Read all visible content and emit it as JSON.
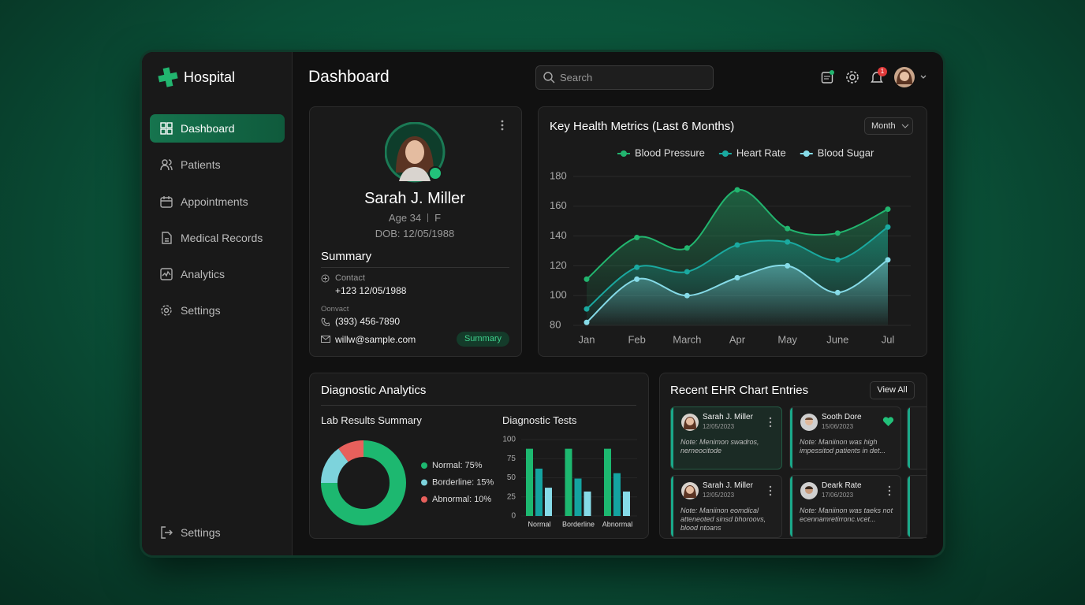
{
  "sidebar": {
    "brand": "Hospital",
    "nav": [
      "Dashboard",
      "Patients",
      "Appointments",
      "Medical Records",
      "Analytics",
      "Settings"
    ],
    "footer": "Settings"
  },
  "header": {
    "title": "Dashboard",
    "search_placeholder": "Search",
    "notification_count": "1"
  },
  "profile": {
    "name": "Sarah J. Miller",
    "age": "Age 34",
    "sex": "F",
    "dob": "DOB: 12/05/1988",
    "section_title": "Summary",
    "contact_label": "Contact",
    "contact_value": "+123 12/05/1988",
    "second_label": "Oonvact",
    "phone": "(393) 456-7890",
    "email": "willw@sample.com",
    "badge": "Summary"
  },
  "metrics_panel": {
    "period_selector": "Month"
  },
  "diagnostic_panel": {
    "title": "Diagnostic Analytics"
  },
  "ehr": {
    "title": "Recent EHR Chart Entries",
    "button": "View All",
    "entries": [
      {
        "name": "Sarah J. Miller",
        "date": "12/05/2023",
        "note": "Note: Menimon swadros, nerneocitode"
      },
      {
        "name": "Sooth Dore",
        "date": "15/06/2023",
        "note": "Note: Maniinon was high impessitod patients in det..."
      },
      {
        "name": "Sarah J. Miller",
        "date": "12/05/2023",
        "note": "Note: Maniinon eomdical atteneoted sinsd bhoroovs, blood ntoans"
      },
      {
        "name": "Deark Rate",
        "date": "17/06/2023",
        "note": "Note: Maniinon was taeks not ecennamretirronc.vcet..."
      }
    ]
  },
  "chart_data": [
    {
      "type": "line",
      "title": "Key Health Metrics (Last 6 Months)",
      "categories": [
        "Jan",
        "Feb",
        "March",
        "Apr",
        "May",
        "June",
        "Jul"
      ],
      "series": [
        {
          "name": "Blood Pressure",
          "color": "#22b56f",
          "values": [
            111,
            139,
            132,
            171,
            145,
            142,
            158
          ]
        },
        {
          "name": "Heart Rate",
          "color": "#1aa9a0",
          "values": [
            91,
            119,
            116,
            134,
            136,
            124,
            146
          ]
        },
        {
          "name": "Blood Sugar",
          "color": "#86dbe8",
          "values": [
            82,
            111,
            100,
            112,
            120,
            102,
            124
          ]
        }
      ],
      "ylim": [
        80,
        180
      ],
      "yticks": [
        80,
        100,
        120,
        140,
        160,
        180
      ],
      "grid": true,
      "legend": "top"
    },
    {
      "type": "donut",
      "title": "Lab Results Summary",
      "labels": [
        "Normal: 75%",
        "Borderline: 15%",
        "Abnormal: 10%"
      ],
      "values": [
        75,
        15,
        10
      ],
      "colors": [
        "#1db870",
        "#7dd3dc",
        "#e8605c"
      ]
    },
    {
      "type": "grouped-bar",
      "title": "Diagnostic Tests",
      "categories": [
        "Normal",
        "Borderline",
        "Abnormal"
      ],
      "series": [
        {
          "color": "#1db870",
          "values": [
            88,
            88,
            88
          ]
        },
        {
          "color": "#14a3a0",
          "values": [
            62,
            49,
            56
          ]
        },
        {
          "color": "#86dbe8",
          "values": [
            37,
            32,
            32
          ]
        }
      ],
      "ylim": [
        0,
        100
      ],
      "yticks": [
        0,
        25,
        50,
        75,
        100
      ],
      "grid": true
    }
  ]
}
